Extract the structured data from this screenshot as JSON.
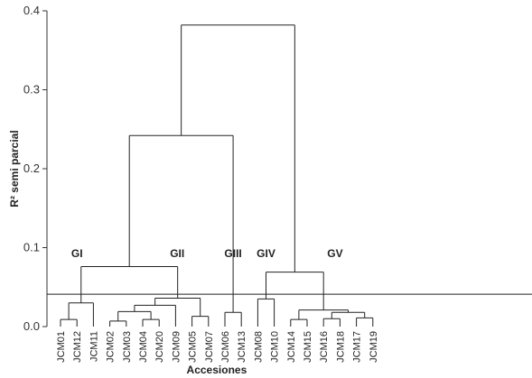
{
  "chart_data": {
    "type": "dendrogram",
    "xlabel": "Accesiones",
    "ylabel": "R² semi parcial",
    "ylim": [
      0,
      0.4
    ],
    "y_ticks": [
      "0.0",
      "0.1",
      "0.2",
      "0.3",
      "0.4"
    ],
    "cut_line": 0.041,
    "leaves": [
      "JCM01",
      "JCM12",
      "JCM11",
      "JCM02",
      "JCM03",
      "JCM04",
      "JCM20",
      "JCM09",
      "JCM05",
      "JCM07",
      "JCM06",
      "JCM13",
      "JCM08",
      "JCM10",
      "JCM14",
      "JCM15",
      "JCM16",
      "JCM18",
      "JCM17",
      "JCM19"
    ],
    "merges": [
      {
        "id": "m1",
        "left": "JCM01",
        "right": "JCM12",
        "height": 0.009
      },
      {
        "id": "m2",
        "left": "m1",
        "right": "JCM11",
        "height": 0.03
      },
      {
        "id": "m3",
        "left": "JCM02",
        "right": "JCM03",
        "height": 0.007
      },
      {
        "id": "m4",
        "left": "JCM04",
        "right": "JCM20",
        "height": 0.009
      },
      {
        "id": "m5",
        "left": "m3",
        "right": "m4",
        "height": 0.019
      },
      {
        "id": "m6",
        "left": "m5",
        "right": "JCM09",
        "height": 0.027
      },
      {
        "id": "m7",
        "left": "JCM05",
        "right": "JCM07",
        "height": 0.013
      },
      {
        "id": "m8",
        "left": "m6",
        "right": "m7",
        "height": 0.036
      },
      {
        "id": "m9",
        "left": "m2",
        "right": "m8",
        "height": 0.076
      },
      {
        "id": "m10",
        "left": "JCM06",
        "right": "JCM13",
        "height": 0.018
      },
      {
        "id": "m11",
        "left": "m9",
        "right": "m10",
        "height": 0.242
      },
      {
        "id": "m12",
        "left": "JCM08",
        "right": "JCM10",
        "height": 0.035
      },
      {
        "id": "m13",
        "left": "JCM14",
        "right": "JCM15",
        "height": 0.009
      },
      {
        "id": "m14",
        "left": "JCM16",
        "right": "JCM18",
        "height": 0.01
      },
      {
        "id": "m15",
        "left": "JCM17",
        "right": "JCM19",
        "height": 0.011
      },
      {
        "id": "m16",
        "left": "m14",
        "right": "m15",
        "height": 0.018
      },
      {
        "id": "m17",
        "left": "m13",
        "right": "m16",
        "height": 0.021
      },
      {
        "id": "m18",
        "left": "m12",
        "right": "m17",
        "height": 0.069
      },
      {
        "id": "m19",
        "left": "m11",
        "right": "m18",
        "height": 0.382
      }
    ],
    "groups": [
      {
        "label": "GI",
        "leaf_center": 1.0
      },
      {
        "label": "GII",
        "leaf_center": 7.1
      },
      {
        "label": "GIII",
        "leaf_center": 10.5
      },
      {
        "label": "GIV",
        "leaf_center": 12.5
      },
      {
        "label": "GV",
        "leaf_center": 16.7
      }
    ]
  }
}
